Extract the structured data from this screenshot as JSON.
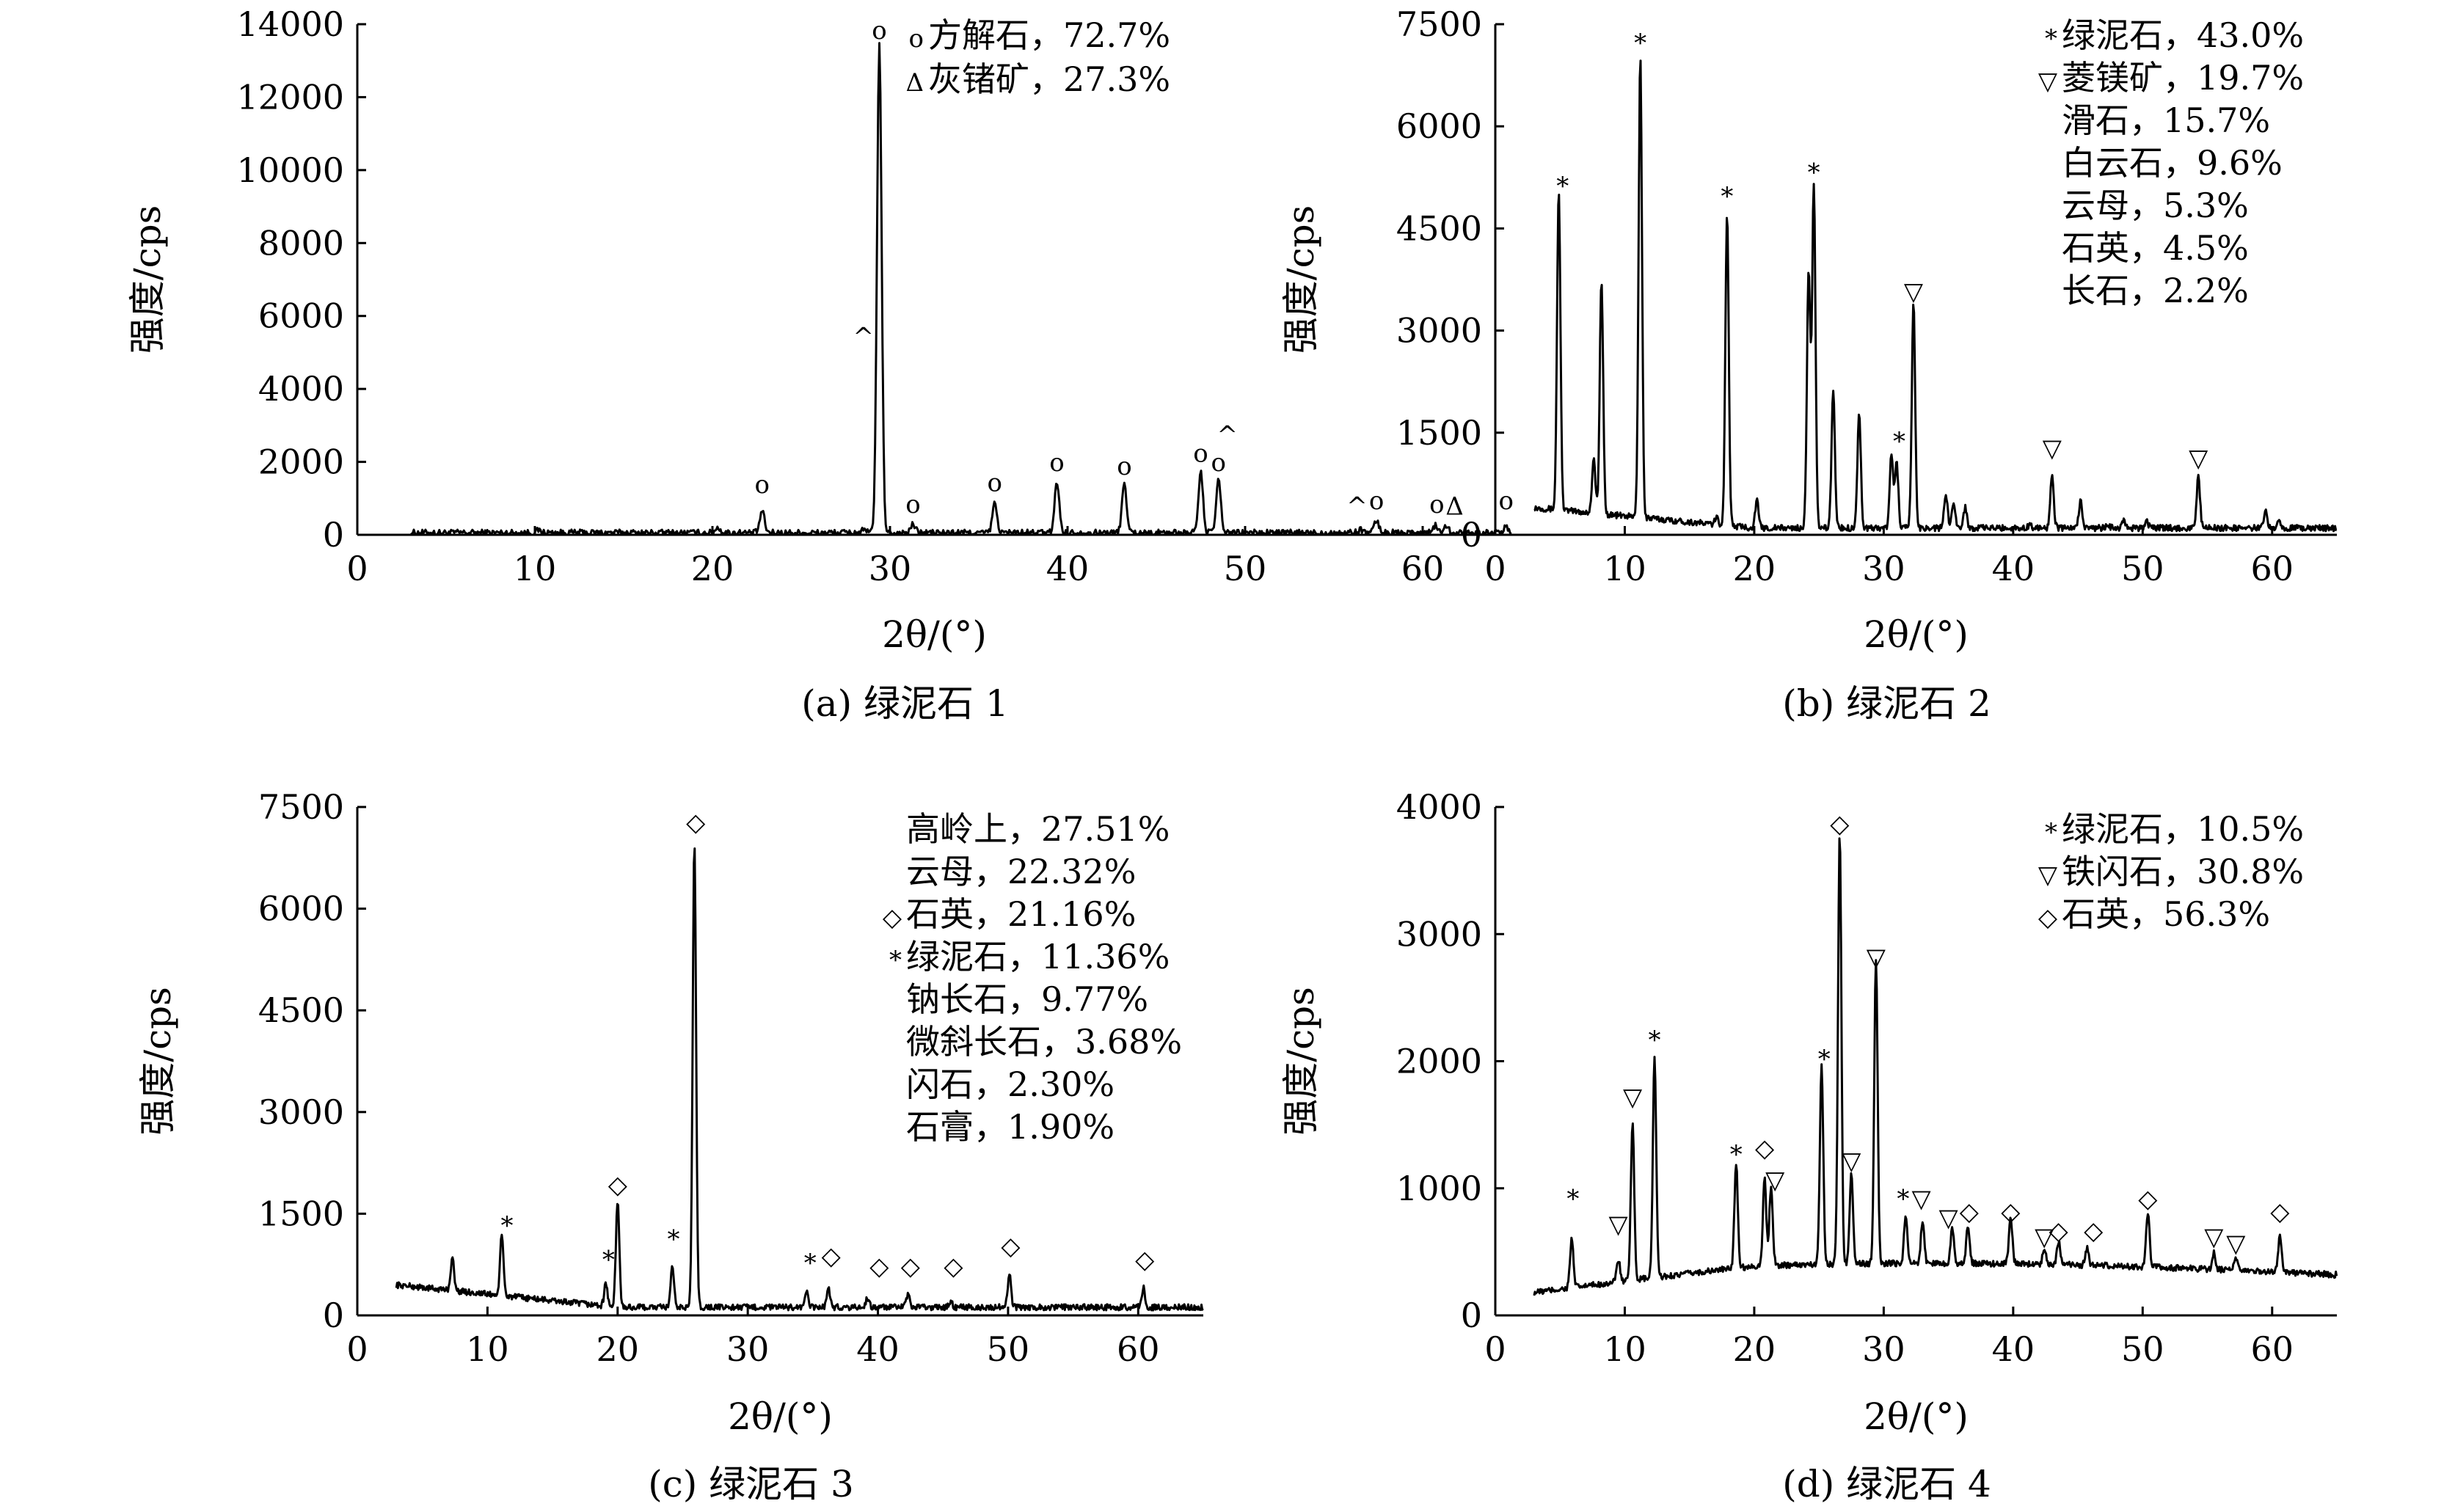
{
  "chart_data": [
    {
      "type": "line",
      "caption": "(a) 绿泥石 1",
      "xlabel": "2θ/(°)",
      "ylabel": "强度/cps",
      "xlim": [
        0,
        65
      ],
      "ylim": [
        0,
        14000
      ],
      "xticks": [
        "0",
        "10",
        "20",
        "30",
        "40",
        "50",
        "60"
      ],
      "yticks": [
        "0",
        "2000",
        "4000",
        "6000",
        "8000",
        "10000",
        "12000",
        "14000"
      ],
      "legend_position": "top-right",
      "legend": [
        {
          "symbol": "o",
          "text": "方解石，72.7%"
        },
        {
          "symbol": "Δ",
          "text": "灰锗矿，27.3%"
        }
      ],
      "baseline": 60,
      "peaks": [
        [
          10.2,
          120
        ],
        [
          20.3,
          200
        ],
        [
          22.8,
          650
        ],
        [
          28.5,
          120
        ],
        [
          29.4,
          13400
        ],
        [
          31.3,
          280
        ],
        [
          35.9,
          850
        ],
        [
          39.4,
          1450
        ],
        [
          43.2,
          1400
        ],
        [
          47.5,
          1700
        ],
        [
          48.5,
          1480
        ],
        [
          56.5,
          150
        ],
        [
          57.4,
          380
        ],
        [
          60.7,
          250
        ],
        [
          61.3,
          280
        ],
        [
          64.7,
          200
        ]
      ],
      "markers": [
        {
          "x": 22.8,
          "y": 1150,
          "symbol": "o"
        },
        {
          "x": 28.5,
          "y": 5200,
          "symbol": "^"
        },
        {
          "x": 29.4,
          "y": 13600,
          "symbol": "o"
        },
        {
          "x": 31.3,
          "y": 600,
          "symbol": "o"
        },
        {
          "x": 35.9,
          "y": 1200,
          "symbol": "o"
        },
        {
          "x": 39.4,
          "y": 1750,
          "symbol": "o"
        },
        {
          "x": 43.2,
          "y": 1650,
          "symbol": "o"
        },
        {
          "x": 47.5,
          "y": 2000,
          "symbol": "o"
        },
        {
          "x": 48.5,
          "y": 1750,
          "symbol": "o"
        },
        {
          "x": 49.0,
          "y": 2500,
          "symbol": "^"
        },
        {
          "x": 56.3,
          "y": 550,
          "symbol": "^"
        },
        {
          "x": 57.4,
          "y": 700,
          "symbol": "o"
        },
        {
          "x": 60.8,
          "y": 600,
          "symbol": "o"
        },
        {
          "x": 61.8,
          "y": 550,
          "symbol": "Δ"
        },
        {
          "x": 64.7,
          "y": 700,
          "symbol": "o"
        }
      ]
    },
    {
      "type": "line",
      "caption": "(b) 绿泥石 2",
      "xlabel": "2θ/(°)",
      "ylabel": "强度/cps",
      "xlim": [
        0,
        65
      ],
      "ylim": [
        0,
        7500
      ],
      "xticks": [
        "0",
        "10",
        "20",
        "30",
        "40",
        "50",
        "60"
      ],
      "yticks": [
        "0",
        "1500",
        "3000",
        "4500",
        "6000",
        "7500"
      ],
      "legend_position": "top-right",
      "legend": [
        {
          "symbol": "*",
          "text": "绿泥石，43.0%"
        },
        {
          "symbol": "▽",
          "text": "菱镁矿，19.7%"
        },
        {
          "symbol": "",
          "text": "滑石，15.7%"
        },
        {
          "symbol": "",
          "text": "白云石，9.6%"
        },
        {
          "symbol": "",
          "text": "云母，5.3%"
        },
        {
          "symbol": "",
          "text": "石英，4.5%"
        },
        {
          "symbol": "",
          "text": "长石，2.2%"
        }
      ],
      "baseline_start": 400,
      "baseline": 100,
      "peaks": [
        [
          4.9,
          4800
        ],
        [
          7.6,
          900
        ],
        [
          8.2,
          3500
        ],
        [
          11.2,
          6900
        ],
        [
          17.1,
          200
        ],
        [
          17.9,
          4700
        ],
        [
          20.2,
          500
        ],
        [
          24.2,
          3900
        ],
        [
          24.6,
          5100
        ],
        [
          26.1,
          2100
        ],
        [
          28.1,
          1800
        ],
        [
          30.6,
          1200
        ],
        [
          31.0,
          1050
        ],
        [
          32.3,
          3400
        ],
        [
          34.8,
          600
        ],
        [
          35.4,
          500
        ],
        [
          36.3,
          400
        ],
        [
          41.3,
          150
        ],
        [
          43.0,
          900
        ],
        [
          45.2,
          500
        ],
        [
          47.3,
          150
        ],
        [
          48.5,
          200
        ],
        [
          50.3,
          200
        ],
        [
          54.3,
          850
        ],
        [
          59.5,
          350
        ],
        [
          60.5,
          250
        ]
      ],
      "markers": [
        {
          "x": 5.2,
          "y": 5000,
          "symbol": "*"
        },
        {
          "x": 11.2,
          "y": 7100,
          "symbol": "*"
        },
        {
          "x": 17.9,
          "y": 4850,
          "symbol": "*"
        },
        {
          "x": 24.6,
          "y": 5200,
          "symbol": "*"
        },
        {
          "x": 31.2,
          "y": 1250,
          "symbol": "*"
        },
        {
          "x": 32.3,
          "y": 3450,
          "symbol": "▽"
        },
        {
          "x": 43.0,
          "y": 1150,
          "symbol": "▽"
        },
        {
          "x": 54.3,
          "y": 1000,
          "symbol": "▽"
        }
      ]
    },
    {
      "type": "line",
      "caption": "(c) 绿泥石 3",
      "xlabel": "2θ/(°)",
      "ylabel": "强度/cps",
      "xlim": [
        0,
        65
      ],
      "ylim": [
        0,
        7500
      ],
      "xticks": [
        "0",
        "10",
        "20",
        "30",
        "40",
        "50",
        "60"
      ],
      "yticks": [
        "0",
        "1500",
        "3000",
        "4500",
        "6000",
        "7500"
      ],
      "legend_position": "top-right",
      "legend": [
        {
          "symbol": "",
          "text": "高岭上，27.51%"
        },
        {
          "symbol": "",
          "text": "云母，22.32%"
        },
        {
          "symbol": "◇",
          "text": "石英，21.16%"
        },
        {
          "symbol": "*",
          "text": "绿泥石，11.36%"
        },
        {
          "symbol": "",
          "text": "钠长石，9.77%"
        },
        {
          "symbol": "",
          "text": "微斜长石，3.68%"
        },
        {
          "symbol": "",
          "text": "闪石，2.30%"
        },
        {
          "symbol": "",
          "text": "石膏，1.90%"
        }
      ],
      "baseline_start": 450,
      "baseline": 120,
      "peaks": [
        [
          7.3,
          600
        ],
        [
          11.1,
          1000
        ],
        [
          19.1,
          450
        ],
        [
          20.0,
          1700
        ],
        [
          24.2,
          700
        ],
        [
          25.9,
          7000
        ],
        [
          34.5,
          350
        ],
        [
          36.2,
          400
        ],
        [
          39.2,
          250
        ],
        [
          42.3,
          300
        ],
        [
          45.6,
          200
        ],
        [
          50.1,
          600
        ],
        [
          60.4,
          400
        ]
      ],
      "markers": [
        {
          "x": 11.5,
          "y": 1200,
          "symbol": "*"
        },
        {
          "x": 19.3,
          "y": 700,
          "symbol": "*"
        },
        {
          "x": 20.0,
          "y": 1800,
          "symbol": "◇"
        },
        {
          "x": 24.3,
          "y": 1000,
          "symbol": "*"
        },
        {
          "x": 26.0,
          "y": 7150,
          "symbol": "◇"
        },
        {
          "x": 34.8,
          "y": 650,
          "symbol": "*"
        },
        {
          "x": 36.4,
          "y": 750,
          "symbol": "◇"
        },
        {
          "x": 40.1,
          "y": 600,
          "symbol": "◇"
        },
        {
          "x": 42.5,
          "y": 600,
          "symbol": "◇"
        },
        {
          "x": 45.8,
          "y": 600,
          "symbol": "◇"
        },
        {
          "x": 50.2,
          "y": 900,
          "symbol": "◇"
        },
        {
          "x": 60.5,
          "y": 700,
          "symbol": "◇"
        }
      ]
    },
    {
      "type": "line",
      "caption": "(d) 绿泥石 4",
      "xlabel": "2θ/(°)",
      "ylabel": "强度/cps",
      "xlim": [
        0,
        65
      ],
      "ylim": [
        0,
        4000
      ],
      "xticks": [
        "0",
        "10",
        "20",
        "30",
        "40",
        "50",
        "60"
      ],
      "yticks": [
        "0",
        "1000",
        "2000",
        "3000",
        "4000"
      ],
      "legend_position": "top-right",
      "legend": [
        {
          "symbol": "*",
          "text": "绿泥石，10.5%"
        },
        {
          "symbol": "▽",
          "text": "铁闪石，30.8%"
        },
        {
          "symbol": "◇",
          "text": "石英，56.3%"
        }
      ],
      "baseline_start": 180,
      "baseline": 320,
      "peaks": [
        [
          5.9,
          700
        ],
        [
          9.5,
          500
        ],
        [
          10.6,
          1550
        ],
        [
          12.3,
          2050
        ],
        [
          18.6,
          1150
        ],
        [
          20.8,
          1000
        ],
        [
          21.3,
          950
        ],
        [
          25.2,
          1900
        ],
        [
          26.6,
          3700
        ],
        [
          27.5,
          1050
        ],
        [
          29.4,
          2700
        ],
        [
          31.7,
          700
        ],
        [
          33.0,
          650
        ],
        [
          35.3,
          600
        ],
        [
          36.5,
          600
        ],
        [
          39.8,
          700
        ],
        [
          42.4,
          450
        ],
        [
          43.5,
          500
        ],
        [
          45.7,
          450
        ],
        [
          50.4,
          750
        ],
        [
          55.5,
          450
        ],
        [
          57.2,
          400
        ],
        [
          60.6,
          600
        ]
      ],
      "markers": [
        {
          "x": 6.0,
          "y": 850,
          "symbol": "*"
        },
        {
          "x": 9.5,
          "y": 650,
          "symbol": "▽"
        },
        {
          "x": 10.6,
          "y": 1650,
          "symbol": "▽"
        },
        {
          "x": 12.3,
          "y": 2100,
          "symbol": "*"
        },
        {
          "x": 18.6,
          "y": 1200,
          "symbol": "*"
        },
        {
          "x": 20.8,
          "y": 1250,
          "symbol": "◇"
        },
        {
          "x": 21.6,
          "y": 1000,
          "symbol": "▽"
        },
        {
          "x": 25.4,
          "y": 1950,
          "symbol": "*"
        },
        {
          "x": 26.6,
          "y": 3800,
          "symbol": "◇"
        },
        {
          "x": 27.5,
          "y": 1150,
          "symbol": "▽"
        },
        {
          "x": 29.4,
          "y": 2750,
          "symbol": "▽"
        },
        {
          "x": 31.5,
          "y": 850,
          "symbol": "*"
        },
        {
          "x": 32.9,
          "y": 850,
          "symbol": "▽"
        },
        {
          "x": 35.0,
          "y": 700,
          "symbol": "▽"
        },
        {
          "x": 36.6,
          "y": 750,
          "symbol": "◇"
        },
        {
          "x": 39.8,
          "y": 750,
          "symbol": "◇"
        },
        {
          "x": 42.4,
          "y": 550,
          "symbol": "▽"
        },
        {
          "x": 43.5,
          "y": 600,
          "symbol": "◇"
        },
        {
          "x": 46.2,
          "y": 600,
          "symbol": "◇"
        },
        {
          "x": 50.4,
          "y": 850,
          "symbol": "◇"
        },
        {
          "x": 55.5,
          "y": 550,
          "symbol": "▽"
        },
        {
          "x": 57.2,
          "y": 500,
          "symbol": "▽"
        },
        {
          "x": 60.6,
          "y": 750,
          "symbol": "◇"
        }
      ]
    }
  ]
}
